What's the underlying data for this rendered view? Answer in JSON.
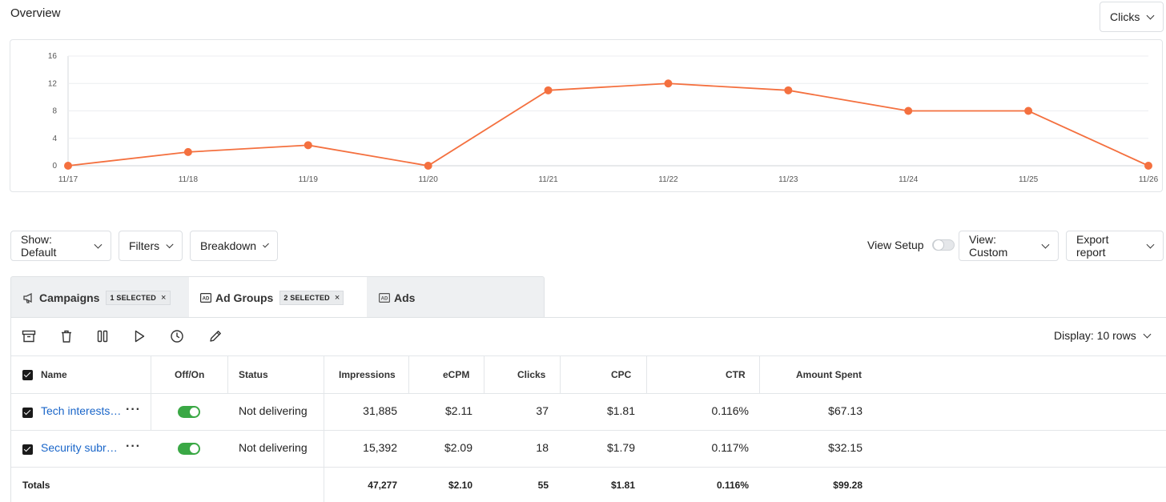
{
  "header": {
    "title": "Overview",
    "metric_select": "Clicks"
  },
  "chart_data": {
    "type": "line",
    "categories": [
      "11/17",
      "11/18",
      "11/19",
      "11/20",
      "11/21",
      "11/22",
      "11/23",
      "11/24",
      "11/25",
      "11/26"
    ],
    "series": [
      {
        "name": "Clicks",
        "values": [
          0,
          2,
          3,
          0,
          11,
          12,
          11,
          8,
          8,
          0
        ]
      }
    ],
    "yticks": [
      "16",
      "12",
      "8",
      "4",
      "0"
    ],
    "ylim": [
      0,
      16
    ],
    "color": "#f4703f",
    "title": "",
    "xlabel": "",
    "ylabel": ""
  },
  "controls": {
    "show": "Show: Default",
    "filters": "Filters",
    "breakdown": "Breakdown",
    "view_setup": "View Setup",
    "view": "View: Custom",
    "export": "Export report"
  },
  "tabs": [
    {
      "label": "Campaigns",
      "badge": "1 SELECTED"
    },
    {
      "label": "Ad Groups",
      "badge": "2 SELECTED"
    },
    {
      "label": "Ads"
    }
  ],
  "toolbar": {
    "display": "Display: 10 rows"
  },
  "table": {
    "headers": {
      "name": "Name",
      "onoff": "Off/On",
      "status": "Status",
      "impressions": "Impressions",
      "ecpm": "eCPM",
      "clicks": "Clicks",
      "cpc": "CPC",
      "ctr": "CTR",
      "spent": "Amount Spent"
    },
    "rows": [
      {
        "name": "Tech interests…",
        "status": "Not delivering",
        "impressions": "31,885",
        "ecpm": "$2.11",
        "clicks": "37",
        "cpc": "$1.81",
        "ctr": "0.116%",
        "spent": "$67.13"
      },
      {
        "name": "Security subr…",
        "status": "Not delivering",
        "impressions": "15,392",
        "ecpm": "$2.09",
        "clicks": "18",
        "cpc": "$1.79",
        "ctr": "0.117%",
        "spent": "$32.15"
      }
    ],
    "totals": {
      "label": "Totals",
      "impressions": "47,277",
      "ecpm": "$2.10",
      "clicks": "55",
      "cpc": "$1.81",
      "ctr": "0.116%",
      "spent": "$99.28"
    }
  }
}
